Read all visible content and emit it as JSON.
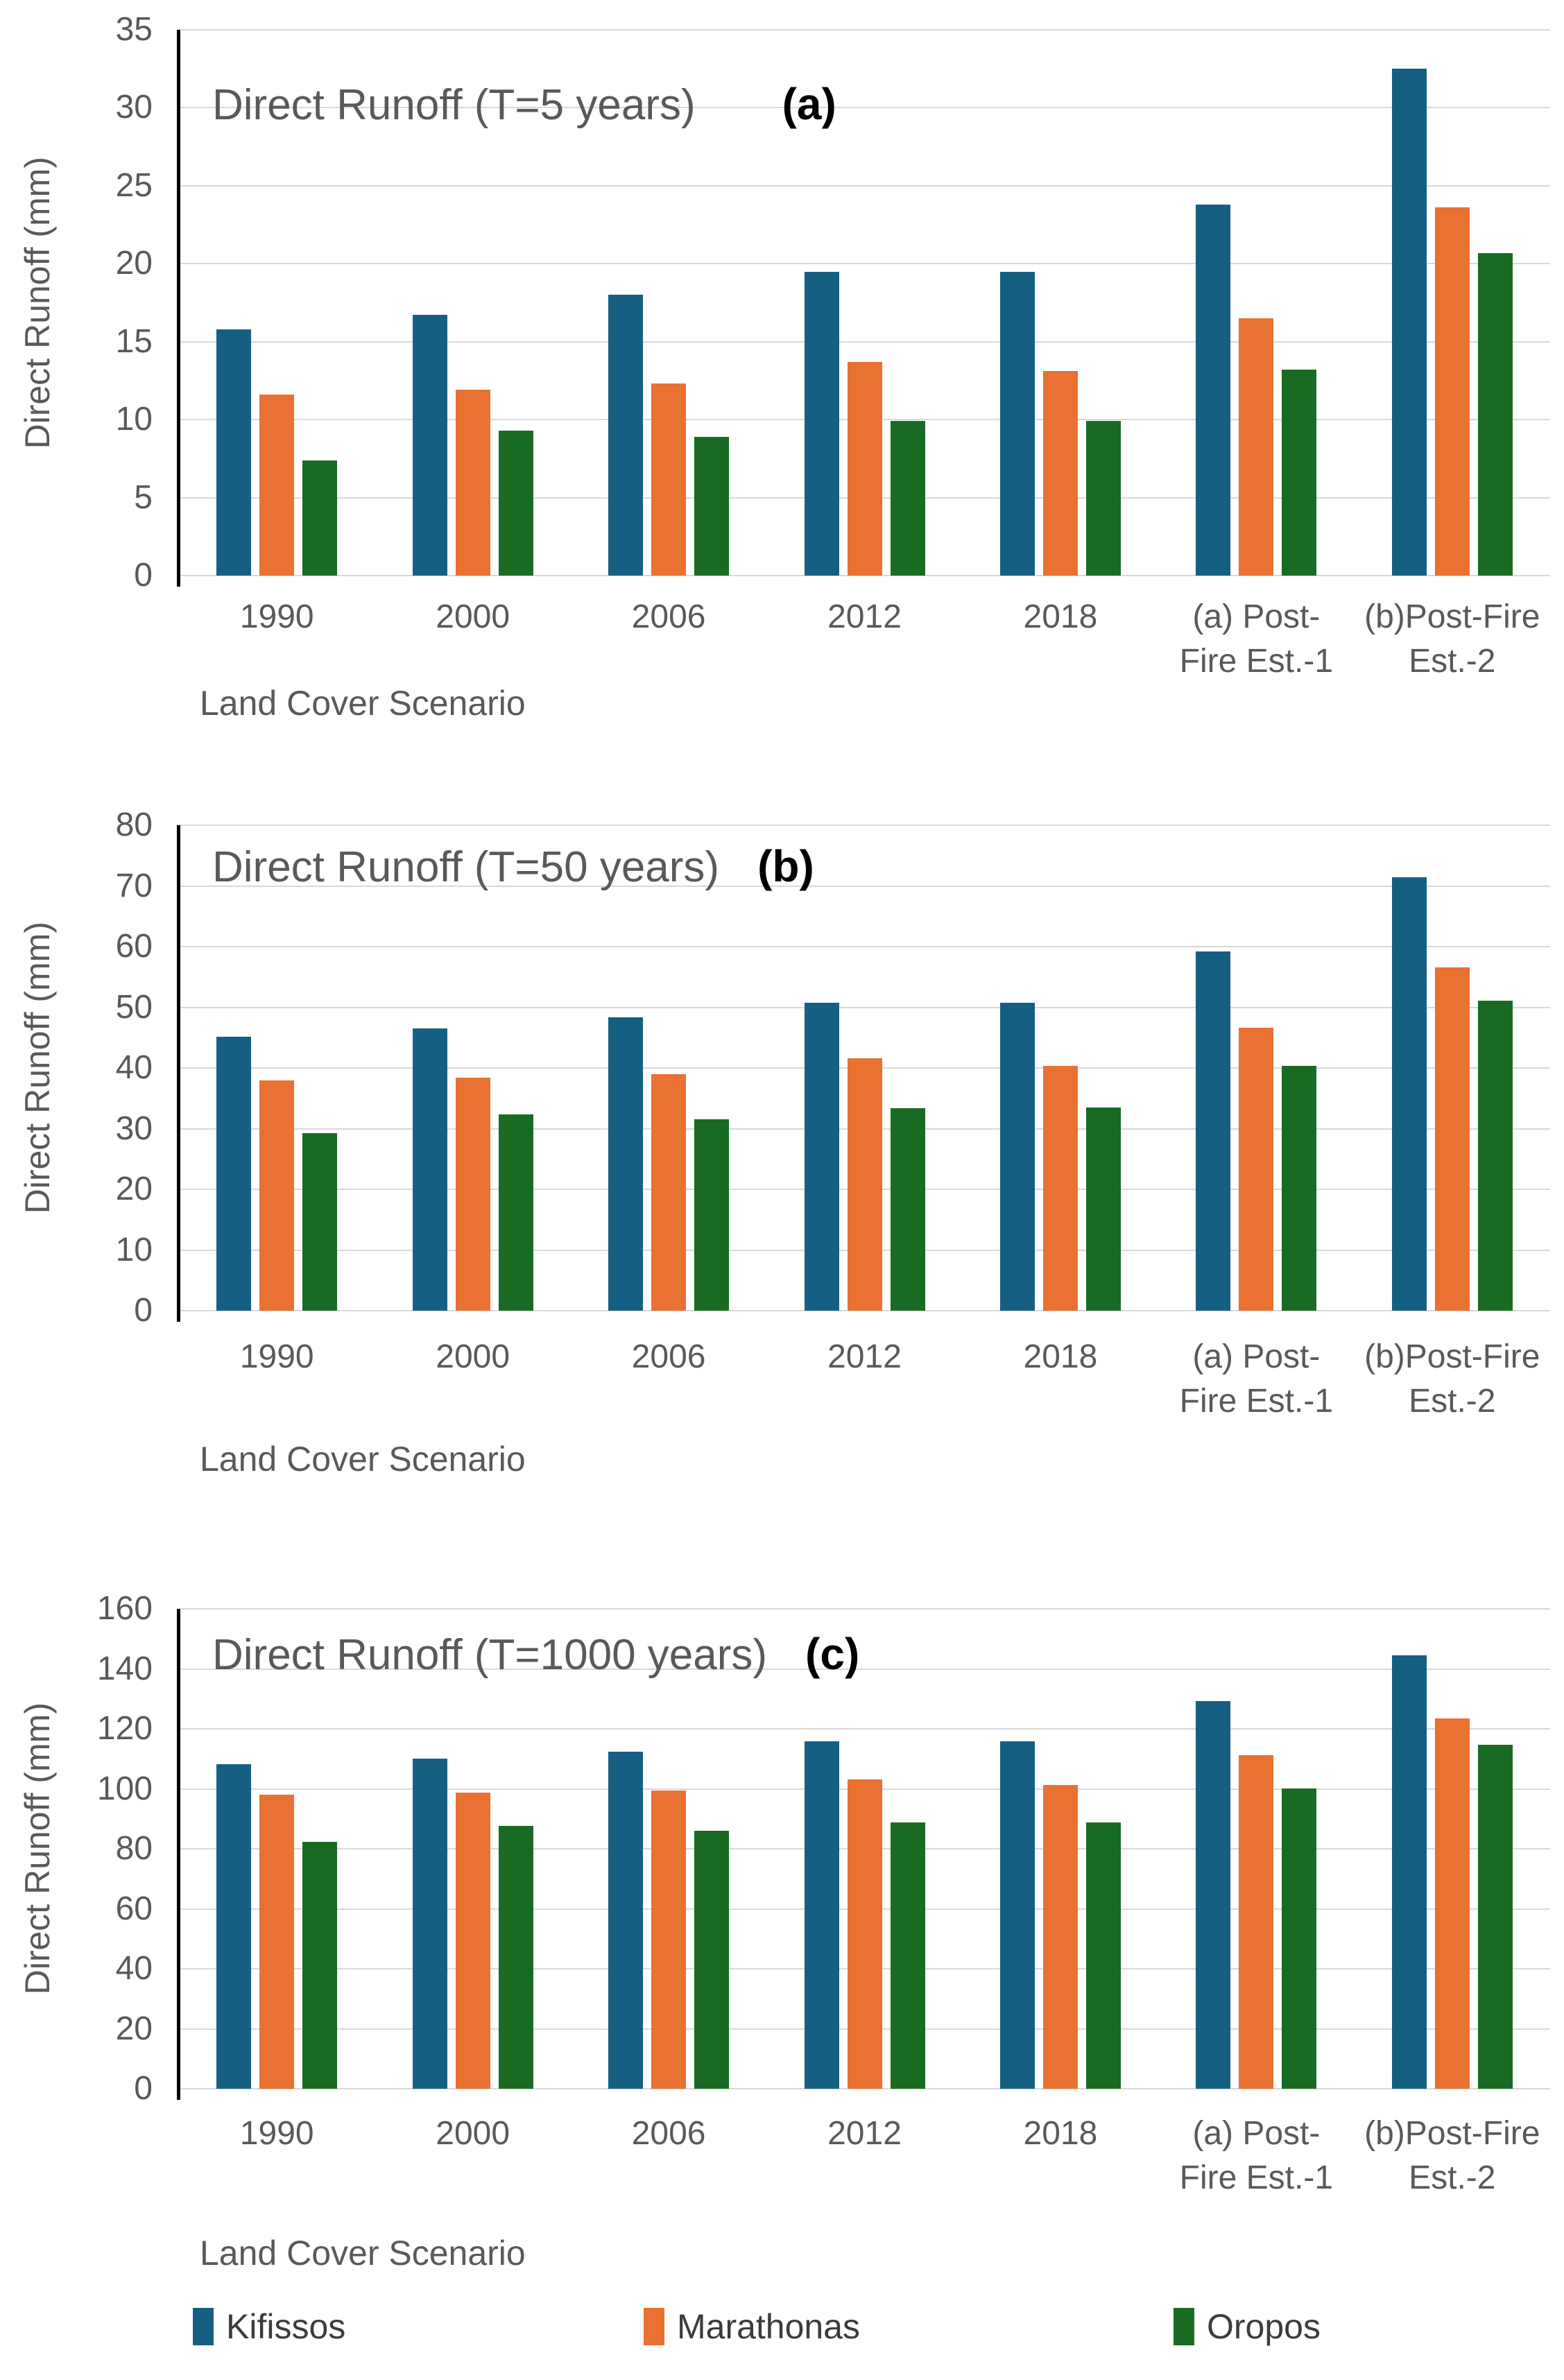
{
  "page": {
    "background": "#FFFFFF"
  },
  "colors": {
    "kifissos": "#156082",
    "marathonas": "#E97132",
    "oropos": "#196B24",
    "gridline": "#D9D9D9",
    "axis_text": "#595959",
    "panel_letter": "#000000",
    "y_axis_line": "#000000"
  },
  "legend": {
    "items": [
      {
        "label": "Kifissos",
        "color": "#156082"
      },
      {
        "label": "Marathonas",
        "color": "#E97132"
      },
      {
        "label": "Oropos",
        "color": "#196B24"
      }
    ]
  },
  "chart_data": [
    {
      "type": "bar",
      "title": "Direct Runoff (T=5 years)",
      "panel_label": "(a)",
      "xlabel": "Land Cover Scenario",
      "ylabel": "Direct Runoff (mm)",
      "ylim": [
        0,
        35
      ],
      "ytick_step": 5,
      "yticks": [
        0,
        5,
        10,
        15,
        20,
        25,
        30,
        35
      ],
      "grid": true,
      "legend_position": "shared-bottom",
      "categories": [
        "1990",
        "2000",
        "2006",
        "2012",
        "2018",
        "(a) Post-Fire Est.-1",
        "(b)Post-Fire Est.-2"
      ],
      "categories_lines": [
        [
          "1990"
        ],
        [
          "2000"
        ],
        [
          "2006"
        ],
        [
          "2012"
        ],
        [
          "2018"
        ],
        [
          "(a) Post-",
          "Fire Est.-1"
        ],
        [
          "(b)Post-Fire",
          "Est.-2"
        ]
      ],
      "series": [
        {
          "name": "Kifissos",
          "color": "#156082",
          "values": [
            15.8,
            16.7,
            18.0,
            19.5,
            19.5,
            23.8,
            32.5
          ]
        },
        {
          "name": "Marathonas",
          "color": "#E97132",
          "values": [
            11.6,
            11.9,
            12.3,
            13.7,
            13.1,
            16.5,
            23.6
          ]
        },
        {
          "name": "Oropos",
          "color": "#196B24",
          "values": [
            7.4,
            9.3,
            8.9,
            9.9,
            9.9,
            13.2,
            20.7
          ]
        }
      ]
    },
    {
      "type": "bar",
      "title": "Direct Runoff (T=50 years)",
      "panel_label": "(b)",
      "xlabel": "Land Cover Scenario",
      "ylabel": "Direct Runoff  (mm)",
      "ylim": [
        0,
        80
      ],
      "ytick_step": 10,
      "yticks": [
        0,
        10,
        20,
        30,
        40,
        50,
        60,
        70,
        80
      ],
      "grid": true,
      "legend_position": "shared-bottom",
      "categories": [
        "1990",
        "2000",
        "2006",
        "2012",
        "2018",
        "(a) Post-Fire Est.-1",
        "(b)Post-Fire Est.-2"
      ],
      "categories_lines": [
        [
          "1990"
        ],
        [
          "2000"
        ],
        [
          "2006"
        ],
        [
          "2012"
        ],
        [
          "2018"
        ],
        [
          "(a) Post-",
          "Fire Est.-1"
        ],
        [
          "(b)Post-Fire",
          "Est.-2"
        ]
      ],
      "series": [
        {
          "name": "Kifissos",
          "color": "#156082",
          "values": [
            45.1,
            46.5,
            48.4,
            50.8,
            50.8,
            59.2,
            71.4
          ]
        },
        {
          "name": "Marathonas",
          "color": "#E97132",
          "values": [
            38.0,
            38.4,
            39.0,
            41.6,
            40.3,
            46.6,
            56.6
          ]
        },
        {
          "name": "Oropos",
          "color": "#196B24",
          "values": [
            29.3,
            32.4,
            31.6,
            33.4,
            33.5,
            40.3,
            51.1
          ]
        }
      ]
    },
    {
      "type": "bar",
      "title": "Direct Runoff (T=1000 years)",
      "panel_label": "(c)",
      "xlabel": "Land Cover Scenario",
      "ylabel": "Direct Runoff (mm)",
      "ylim": [
        0,
        160
      ],
      "ytick_step": 20,
      "yticks": [
        0,
        20,
        40,
        60,
        80,
        100,
        120,
        140,
        160
      ],
      "grid": true,
      "legend_position": "shared-bottom",
      "categories": [
        "1990",
        "2000",
        "2006",
        "2012",
        "2018",
        "(a) Post-Fire Est.-1",
        "(b)Post-Fire Est.-2"
      ],
      "categories_lines": [
        [
          "1990"
        ],
        [
          "2000"
        ],
        [
          "2006"
        ],
        [
          "2012"
        ],
        [
          "2018"
        ],
        [
          "(a) Post-",
          "Fire Est.-1"
        ],
        [
          "(b)Post-Fire",
          "Est.-2"
        ]
      ],
      "series": [
        {
          "name": "Kifissos",
          "color": "#156082",
          "values": [
            108.2,
            110.1,
            112.4,
            115.9,
            115.8,
            129.2,
            144.6
          ]
        },
        {
          "name": "Marathonas",
          "color": "#E97132",
          "values": [
            98.1,
            98.8,
            99.4,
            103.2,
            101.2,
            111.1,
            123.5
          ]
        },
        {
          "name": "Oropos",
          "color": "#196B24",
          "values": [
            82.4,
            87.7,
            85.9,
            88.8,
            88.7,
            100.2,
            114.7
          ]
        }
      ]
    }
  ]
}
